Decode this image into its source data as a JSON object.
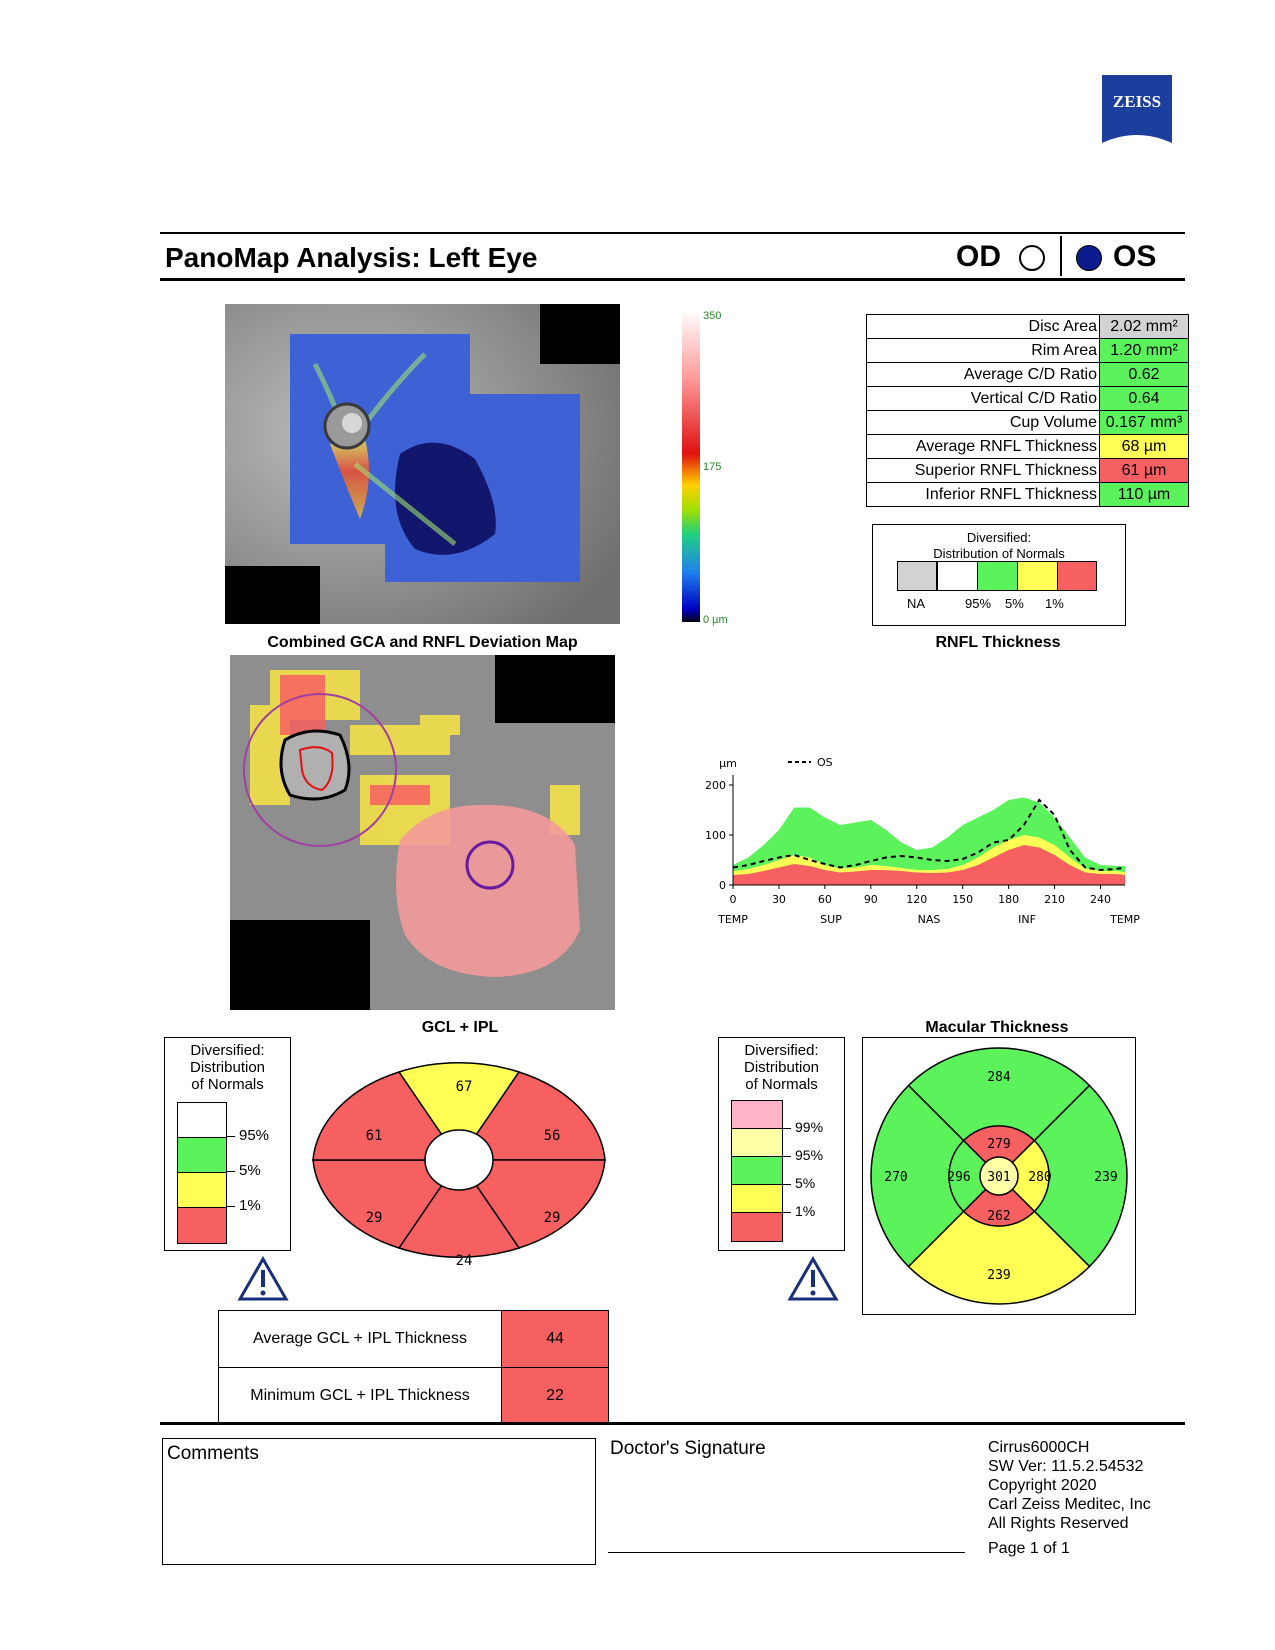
{
  "header": {
    "logo_text": "ZEISS",
    "title": "PanoMap Analysis: Left Eye",
    "od_label": "OD",
    "os_label": "OS",
    "selected_eye": "OS"
  },
  "deviation_map": {
    "caption": "Combined GCA and RNFL Deviation Map",
    "scale_max": "350",
    "scale_mid": "175",
    "scale_min": "0 µm"
  },
  "rnfl": {
    "caption": "RNFL Thickness",
    "metrics": [
      {
        "label": "Disc Area",
        "value": "2.02 mm²",
        "color": "#d3d3d3"
      },
      {
        "label": "Rim Area",
        "value": "1.20 mm²",
        "color": "#5cf25c"
      },
      {
        "label": "Average C/D Ratio",
        "value": "0.62",
        "color": "#5cf25c"
      },
      {
        "label": "Vertical C/D Ratio",
        "value": "0.64",
        "color": "#5cf25c"
      },
      {
        "label": "Cup Volume",
        "value": "0.167 mm³",
        "color": "#5cf25c"
      },
      {
        "label": "Average RNFL Thickness",
        "value": "68 µm",
        "color": "#ffff55"
      },
      {
        "label": "Superior RNFL Thickness",
        "value": "61 µm",
        "color": "#f76060"
      },
      {
        "label": "Inferior RNFL Thickness",
        "value": "110 µm",
        "color": "#5cf25c"
      }
    ],
    "legend": {
      "title_line1": "Diversified:",
      "title_line2": "Distribution of Normals",
      "labels": [
        "NA",
        "95%",
        "5%",
        "1%"
      ]
    }
  },
  "chart_data": {
    "type": "line",
    "ylabel": "µm",
    "legend": "OS",
    "xlim": [
      0,
      256
    ],
    "ylim": [
      0,
      200
    ],
    "x_ticks": [
      0,
      30,
      60,
      90,
      120,
      150,
      180,
      210,
      240
    ],
    "y_ticks": [
      0,
      100,
      200
    ],
    "regions": [
      "TEMP",
      "SUP",
      "NAS",
      "INF",
      "TEMP"
    ],
    "region_x": [
      0,
      64,
      128,
      192,
      256
    ],
    "x": [
      0,
      10,
      20,
      30,
      40,
      50,
      60,
      70,
      80,
      90,
      100,
      110,
      120,
      130,
      140,
      150,
      160,
      170,
      180,
      190,
      200,
      210,
      220,
      230,
      240,
      250,
      256
    ],
    "series": [
      {
        "name": "OS",
        "values": [
          35,
          40,
          48,
          55,
          60,
          50,
          42,
          35,
          40,
          48,
          55,
          58,
          55,
          50,
          48,
          52,
          65,
          85,
          90,
          120,
          170,
          140,
          70,
          35,
          30,
          32,
          35
        ]
      }
    ],
    "bands": {
      "p1": [
        20,
        22,
        28,
        35,
        42,
        38,
        30,
        25,
        27,
        30,
        30,
        28,
        25,
        24,
        25,
        30,
        40,
        55,
        70,
        80,
        75,
        60,
        40,
        25,
        22,
        22,
        20
      ],
      "p5": [
        28,
        32,
        40,
        50,
        60,
        55,
        40,
        33,
        35,
        40,
        38,
        34,
        30,
        30,
        32,
        40,
        55,
        75,
        90,
        100,
        95,
        80,
        55,
        33,
        28,
        28,
        26
      ],
      "p95": [
        40,
        55,
        80,
        110,
        155,
        155,
        135,
        120,
        125,
        130,
        110,
        85,
        70,
        75,
        95,
        120,
        135,
        150,
        170,
        175,
        165,
        135,
        95,
        55,
        40,
        38,
        38
      ]
    }
  },
  "gcl": {
    "caption": "GCL + IPL",
    "legend": {
      "title_lines": [
        "Diversified:",
        "Distribution",
        "of Normals"
      ],
      "labels": [
        "95%",
        "5%",
        "1%"
      ]
    },
    "sectors": [
      {
        "pos": "top",
        "value": "67",
        "color": "#ffff55"
      },
      {
        "pos": "upper-right",
        "value": "56",
        "color": "#f76060"
      },
      {
        "pos": "lower-right",
        "value": "29",
        "color": "#f76060"
      },
      {
        "pos": "bottom",
        "value": "24",
        "color": "#f76060"
      },
      {
        "pos": "lower-left",
        "value": "29",
        "color": "#f76060"
      },
      {
        "pos": "upper-left",
        "value": "61",
        "color": "#f76060"
      }
    ],
    "table": [
      {
        "label": "Average GCL + IPL Thickness",
        "value": "44"
      },
      {
        "label": "Minimum GCL + IPL Thickness",
        "value": "22"
      }
    ]
  },
  "macular": {
    "caption": "Macular Thickness",
    "legend": {
      "title_lines": [
        "Diversified:",
        "Distribution",
        "of Normals"
      ],
      "labels": [
        "99%",
        "95%",
        "5%",
        "1%"
      ]
    },
    "outer": {
      "superior": "284",
      "nasal": "239",
      "inferior": "239",
      "temporal": "270"
    },
    "inner": {
      "superior": "279",
      "nasal": "280",
      "inferior": "262",
      "temporal": "296"
    },
    "center": "301"
  },
  "footer": {
    "comments_label": "Comments",
    "signature_label": "Doctor's Signature",
    "device": "Cirrus6000CH",
    "sw_version": "SW Ver: 11.5.2.54532",
    "copyright": "Copyright 2020",
    "company": "Carl Zeiss Meditec, Inc",
    "rights": "All Rights Reserved",
    "page": "Page 1 of 1"
  }
}
